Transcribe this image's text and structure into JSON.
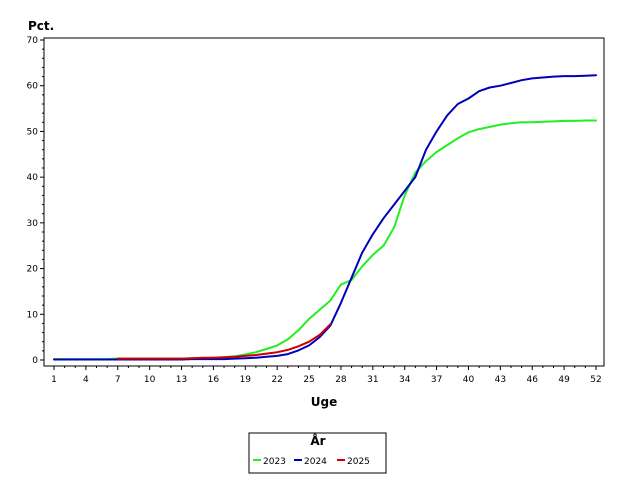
{
  "chart_data": {
    "type": "line",
    "title": "",
    "ylabel": "Pct.",
    "xlabel": "Uge",
    "xlim": [
      1,
      52
    ],
    "ylim": [
      0,
      70
    ],
    "x_ticks": [
      1,
      4,
      7,
      10,
      13,
      16,
      19,
      22,
      25,
      28,
      31,
      34,
      37,
      40,
      43,
      46,
      49,
      52
    ],
    "y_ticks": [
      0,
      10,
      20,
      30,
      40,
      50,
      60,
      70
    ],
    "grid": false,
    "legend": {
      "title": "År",
      "position": "bottom-center"
    },
    "series": [
      {
        "name": "2023",
        "color": "#22ee22",
        "x": [
          1,
          2,
          3,
          4,
          5,
          6,
          7,
          8,
          9,
          10,
          11,
          12,
          13,
          14,
          15,
          16,
          17,
          18,
          19,
          20,
          21,
          22,
          23,
          24,
          25,
          26,
          27,
          28,
          29,
          30,
          31,
          32,
          33,
          34,
          35,
          36,
          37,
          38,
          39,
          40,
          41,
          42,
          43,
          44,
          45,
          46,
          47,
          48,
          49,
          50,
          51,
          52
        ],
        "y": [
          0.2,
          0.2,
          0.2,
          0.2,
          0.2,
          0.2,
          0.3,
          0.3,
          0.3,
          0.3,
          0.3,
          0.3,
          0.3,
          0.4,
          0.4,
          0.5,
          0.6,
          0.8,
          1.2,
          1.7,
          2.4,
          3.2,
          4.5,
          6.5,
          9.0,
          11.0,
          13.0,
          16.5,
          17.5,
          20.5,
          23.0,
          25.0,
          29.0,
          36.0,
          41.0,
          43.5,
          45.5,
          47.0,
          48.5,
          49.8,
          50.5,
          51.0,
          51.5,
          51.8,
          52.0,
          52.0,
          52.1,
          52.2,
          52.3,
          52.3,
          52.4,
          52.4
        ]
      },
      {
        "name": "2024",
        "color": "#0000bb",
        "x": [
          1,
          2,
          3,
          4,
          5,
          6,
          7,
          8,
          9,
          10,
          11,
          12,
          13,
          14,
          15,
          16,
          17,
          18,
          19,
          20,
          21,
          22,
          23,
          24,
          25,
          26,
          27,
          28,
          29,
          30,
          31,
          32,
          33,
          34,
          35,
          36,
          37,
          38,
          39,
          40,
          41,
          42,
          43,
          44,
          45,
          46,
          47,
          48,
          49,
          50,
          51,
          52
        ],
        "y": [
          0.1,
          0.1,
          0.1,
          0.1,
          0.1,
          0.1,
          0.1,
          0.1,
          0.1,
          0.1,
          0.1,
          0.1,
          0.1,
          0.2,
          0.2,
          0.2,
          0.2,
          0.3,
          0.4,
          0.5,
          0.7,
          0.9,
          1.3,
          2.1,
          3.2,
          5.0,
          7.5,
          12.5,
          18.0,
          23.5,
          27.5,
          31.0,
          34.0,
          37.0,
          40.0,
          46.0,
          50.0,
          53.5,
          56.0,
          57.2,
          58.8,
          59.6,
          60.0,
          60.6,
          61.2,
          61.6,
          61.8,
          62.0,
          62.1,
          62.1,
          62.2,
          62.3
        ]
      },
      {
        "name": "2025",
        "color": "#cc0000",
        "x": [
          7,
          8,
          9,
          10,
          11,
          12,
          13,
          14,
          15,
          16,
          17,
          18,
          19,
          20,
          21,
          22,
          23,
          24,
          25,
          26,
          27
        ],
        "y": [
          0.3,
          0.3,
          0.3,
          0.3,
          0.3,
          0.3,
          0.3,
          0.4,
          0.5,
          0.5,
          0.6,
          0.7,
          0.9,
          1.1,
          1.4,
          1.7,
          2.2,
          3.0,
          4.0,
          5.5,
          7.8
        ]
      }
    ]
  }
}
